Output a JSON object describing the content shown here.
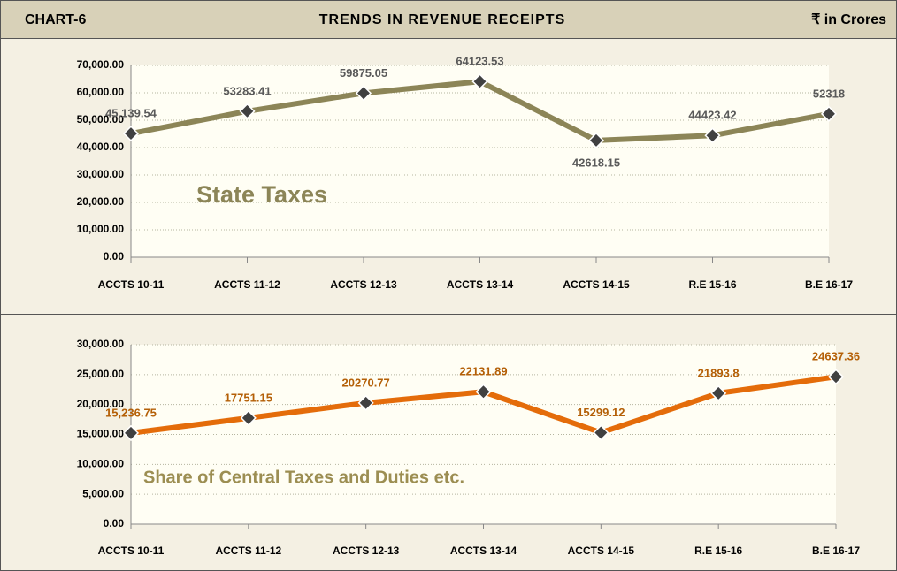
{
  "header": {
    "left": "CHART-6",
    "title": "TRENDS IN REVENUE RECEIPTS",
    "unit": "₹ in Crores"
  },
  "chart_data": [
    {
      "type": "line",
      "annotation": "State Taxes",
      "categories": [
        "ACCTS 10-11",
        "ACCTS 11-12",
        "ACCTS 12-13",
        "ACCTS 13-14",
        "ACCTS 14-15",
        "R.E 15-16",
        "B.E 16-17"
      ],
      "values": [
        45139.54,
        53283.41,
        59875.05,
        64123.53,
        42618.15,
        44423.42,
        52318
      ],
      "value_labels": [
        "45,139.54",
        "53283.41",
        "59875.05",
        "64123.53",
        "42618.15",
        "44423.42",
        "52318"
      ],
      "color": "#8c8557",
      "label_color": "#595959",
      "annotation_color": "#8c8557",
      "ylim": [
        0,
        70000
      ],
      "yticks": [
        {
          "value": 0,
          "label": "0.00"
        },
        {
          "value": 10000,
          "label": "10,000.00"
        },
        {
          "value": 20000,
          "label": "20,000.00"
        },
        {
          "value": 30000,
          "label": "30,000.00"
        },
        {
          "value": 40000,
          "label": "40,000.00"
        },
        {
          "value": 50000,
          "label": "50,000.00"
        },
        {
          "value": 60000,
          "label": "60,000.00"
        },
        {
          "value": 70000,
          "label": "70,000.00"
        }
      ],
      "grid": true
    },
    {
      "type": "line",
      "annotation": "Share of Central Taxes and Duties etc.",
      "categories": [
        "ACCTS 10-11",
        "ACCTS 11-12",
        "ACCTS 12-13",
        "ACCTS 13-14",
        "ACCTS 14-15",
        "R.E 15-16",
        "B.E 16-17"
      ],
      "values": [
        15236.75,
        17751.15,
        20270.77,
        22131.89,
        15299.12,
        21893.8,
        24637.36
      ],
      "value_labels": [
        "15,236.75",
        "17751.15",
        "20270.77",
        "22131.89",
        "15299.12",
        "21893.8",
        "24637.36"
      ],
      "color": "#e46c0a",
      "label_color": "#b45f06",
      "annotation_color": "#9c8e52",
      "ylim": [
        0,
        30000
      ],
      "yticks": [
        {
          "value": 0,
          "label": "0.00"
        },
        {
          "value": 5000,
          "label": "5,000.00"
        },
        {
          "value": 10000,
          "label": "10,000.00"
        },
        {
          "value": 15000,
          "label": "15,000.00"
        },
        {
          "value": 20000,
          "label": "20,000.00"
        },
        {
          "value": 25000,
          "label": "25,000.00"
        },
        {
          "value": 30000,
          "label": "30,000.00"
        }
      ],
      "grid": true
    }
  ]
}
